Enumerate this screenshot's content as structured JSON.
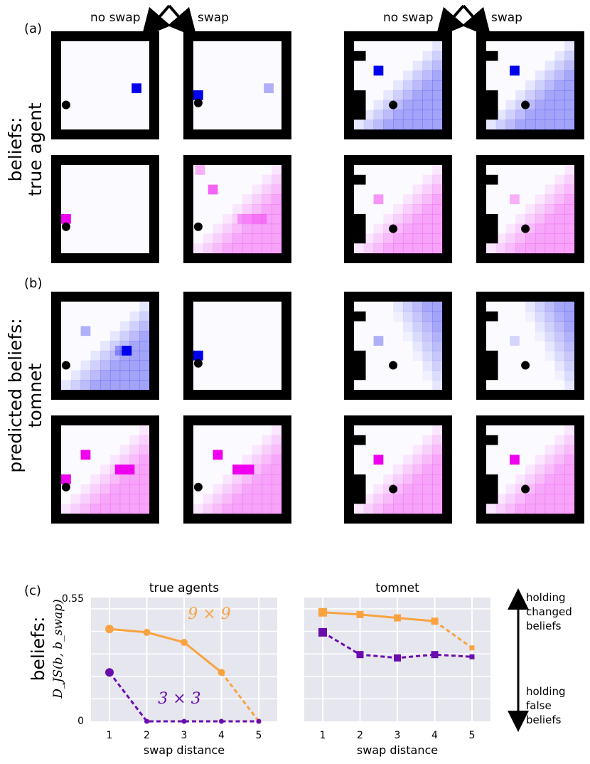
{
  "panels": {
    "a": "(a)",
    "b": "(b)",
    "c": "(c)"
  },
  "swap_headers": {
    "no_swap": "no swap",
    "swap": "swap"
  },
  "row_labels": {
    "a_line1": "beliefs:",
    "a_line2": "true agent",
    "b_line1": "predicted beliefs:",
    "b_line2": "tomnet",
    "c_line1": "beliefs:",
    "c_line2": "D_JS(b, b_swap)"
  },
  "colors": {
    "blue": "#0000ee",
    "magenta": "#ee00ee",
    "orange": "#f8a33f",
    "purple": "#6a0dad",
    "wall": "#000000",
    "bg_panel": "#e6e6ef"
  },
  "grids": {
    "a": [
      {
        "col": "no swap",
        "blue_obj": true,
        "magenta_obj": true
      },
      {
        "col": "swap",
        "blue_obj": true,
        "magenta_obj": true
      },
      {
        "col": "no swap",
        "blue_obj": true,
        "magenta_obj": true
      },
      {
        "col": "swap",
        "blue_obj": true,
        "magenta_obj": true
      }
    ]
  },
  "chart_data": [
    {
      "type": "line",
      "title": "true agents",
      "x": [
        1,
        2,
        3,
        4,
        5
      ],
      "xlabel": "swap distance",
      "ylabel": "D_JS(b, b_swap)",
      "ylim": [
        0,
        0.55
      ],
      "yticks": [
        "0",
        "0.55"
      ],
      "series": [
        {
          "name": "9 × 9",
          "color": "#f8a33f",
          "values": [
            0.415,
            0.4,
            0.355,
            0.22,
            0.0
          ]
        },
        {
          "name": "3 × 3",
          "color": "#6a0dad",
          "values": [
            0.22,
            0.0,
            0.0,
            0.0,
            0.0
          ]
        }
      ]
    },
    {
      "type": "line",
      "title": "tomnet",
      "x": [
        1,
        2,
        3,
        4,
        5
      ],
      "xlabel": "swap distance",
      "ylim": [
        0,
        0.55
      ],
      "series": [
        {
          "color": "#f8a33f",
          "values": [
            0.49,
            0.48,
            0.465,
            0.45,
            0.33
          ]
        },
        {
          "color": "#6a0dad",
          "values": [
            0.4,
            0.3,
            0.285,
            0.3,
            0.29
          ]
        }
      ]
    }
  ],
  "arrow_labels": {
    "top": [
      "holding",
      "changed",
      "beliefs"
    ],
    "bottom": [
      "holding",
      "false",
      "beliefs"
    ]
  }
}
